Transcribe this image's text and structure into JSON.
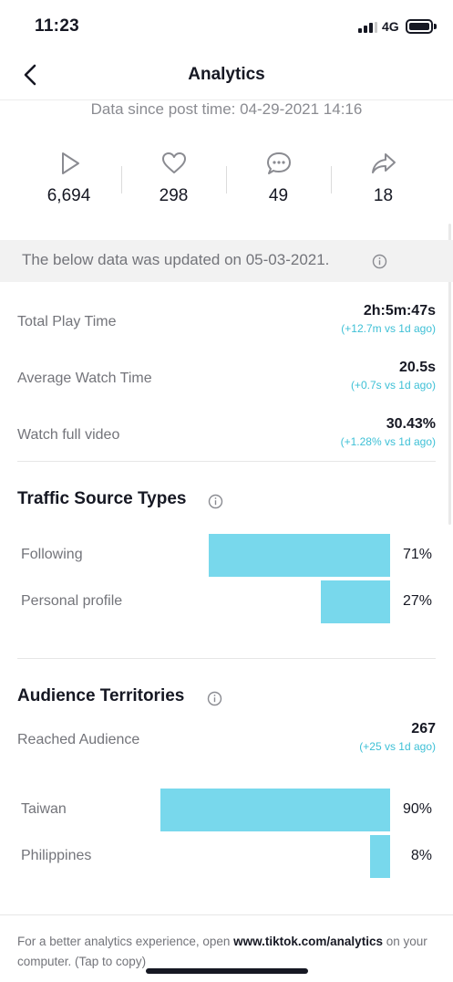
{
  "status_bar": {
    "time": "11:23",
    "network": "4G"
  },
  "nav": {
    "title": "Analytics"
  },
  "since_text": "Data since post time: 04-29-2021 14:16",
  "stats": [
    {
      "icon": "play-icon",
      "value": "6,694"
    },
    {
      "icon": "heart-icon",
      "value": "298"
    },
    {
      "icon": "comment-icon",
      "value": "49"
    },
    {
      "icon": "share-icon",
      "value": "18"
    }
  ],
  "banner": {
    "text": "The below data was updated on 05-03-2021."
  },
  "metrics": [
    {
      "label": "Total Play Time",
      "value": "2h:5m:47s",
      "delta": "(+12.7m vs 1d ago)"
    },
    {
      "label": "Average Watch Time",
      "value": "20.5s",
      "delta": "(+0.7s vs 1d ago)"
    },
    {
      "label": "Watch full video",
      "value": "30.43%",
      "delta": "(+1.28% vs 1d ago)"
    }
  ],
  "traffic": {
    "title": "Traffic Source Types",
    "rows": [
      {
        "label": "Following",
        "percent": 71,
        "percent_label": "71%"
      },
      {
        "label": "Personal profile",
        "percent": 27,
        "percent_label": "27%"
      }
    ]
  },
  "audience": {
    "title": "Audience Territories",
    "reached_label": "Reached Audience",
    "reached_value": "267",
    "reached_delta": "(+25 vs 1d ago)",
    "rows": [
      {
        "label": "Taiwan",
        "percent": 90,
        "percent_label": "90%"
      },
      {
        "label": "Philippines",
        "percent": 8,
        "percent_label": "8%"
      }
    ]
  },
  "footer": {
    "prefix": "For a better analytics experience, open",
    "link": "www.tiktok.com/analytics",
    "suffix": "on your computer. (Tap to copy)"
  },
  "colors": {
    "bar": "#78d8ec",
    "delta": "#3ec0d6"
  }
}
